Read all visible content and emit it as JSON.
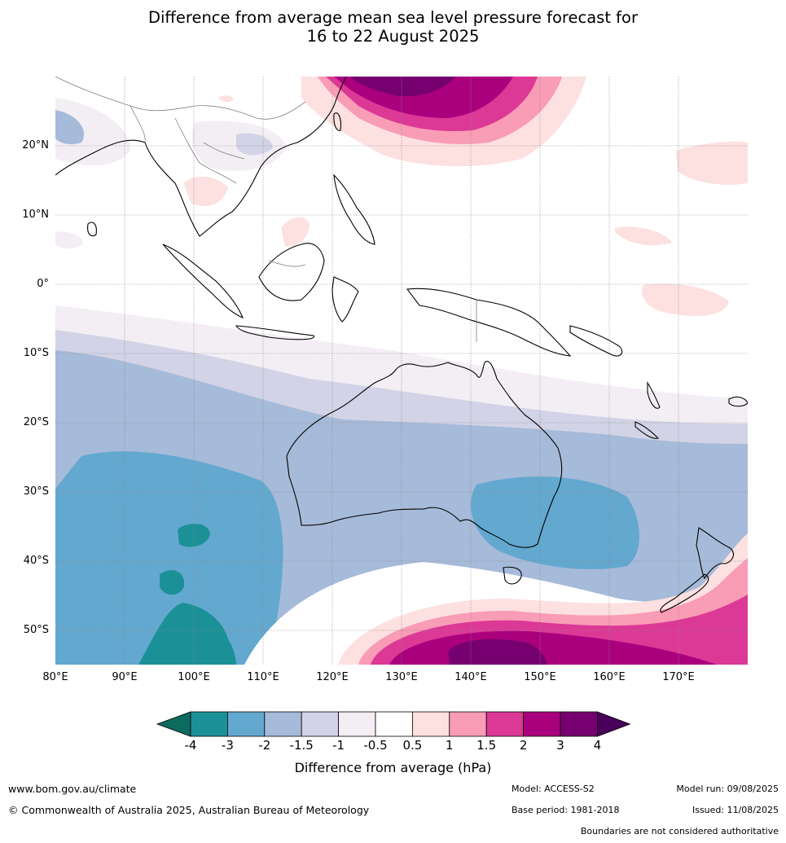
{
  "title": {
    "line1": "Difference from average mean sea level pressure forecast for",
    "line2": "16 to 22 August 2025"
  },
  "map": {
    "lat_labels": [
      "20°N",
      "10°N",
      "0°",
      "10°S",
      "20°S",
      "30°S",
      "40°S",
      "50°S"
    ],
    "lon_labels": [
      "80°E",
      "90°E",
      "100°E",
      "110°E",
      "120°E",
      "130°E",
      "140°E",
      "150°E",
      "160°E",
      "170°E"
    ],
    "region": "Indo-Pacific, Australia",
    "extent": {
      "lon": [
        80,
        180
      ],
      "lat": [
        -55,
        30
      ]
    }
  },
  "colorbar": {
    "title": "Difference from average (hPa)",
    "ticks": [
      "-4",
      "-3",
      "-2",
      "-1.5",
      "-1",
      "-0.5",
      "0.5",
      "1",
      "1.5",
      "2",
      "3",
      "4"
    ],
    "colors": [
      "#0d6b5e",
      "#1b9197",
      "#63a8cf",
      "#a6bad9",
      "#d2d3e6",
      "#f3eef4",
      "#ffffff",
      "#fde0e0",
      "#f99cb6",
      "#dc3896",
      "#ab007e",
      "#76006f",
      "#4a005a"
    ]
  },
  "footer": {
    "website": "www.bom.gov.au/climate",
    "copyright": "© Commonwealth of Australia 2025, Australian Bureau of Meteorology",
    "model": "Model: ACCESS-S2",
    "base_period": "Base period: 1981-2018",
    "model_run": "Model run: 09/08/2025",
    "issued": "Issued: 11/08/2025",
    "disclaimer": "Boundaries are not considered authoritative"
  }
}
